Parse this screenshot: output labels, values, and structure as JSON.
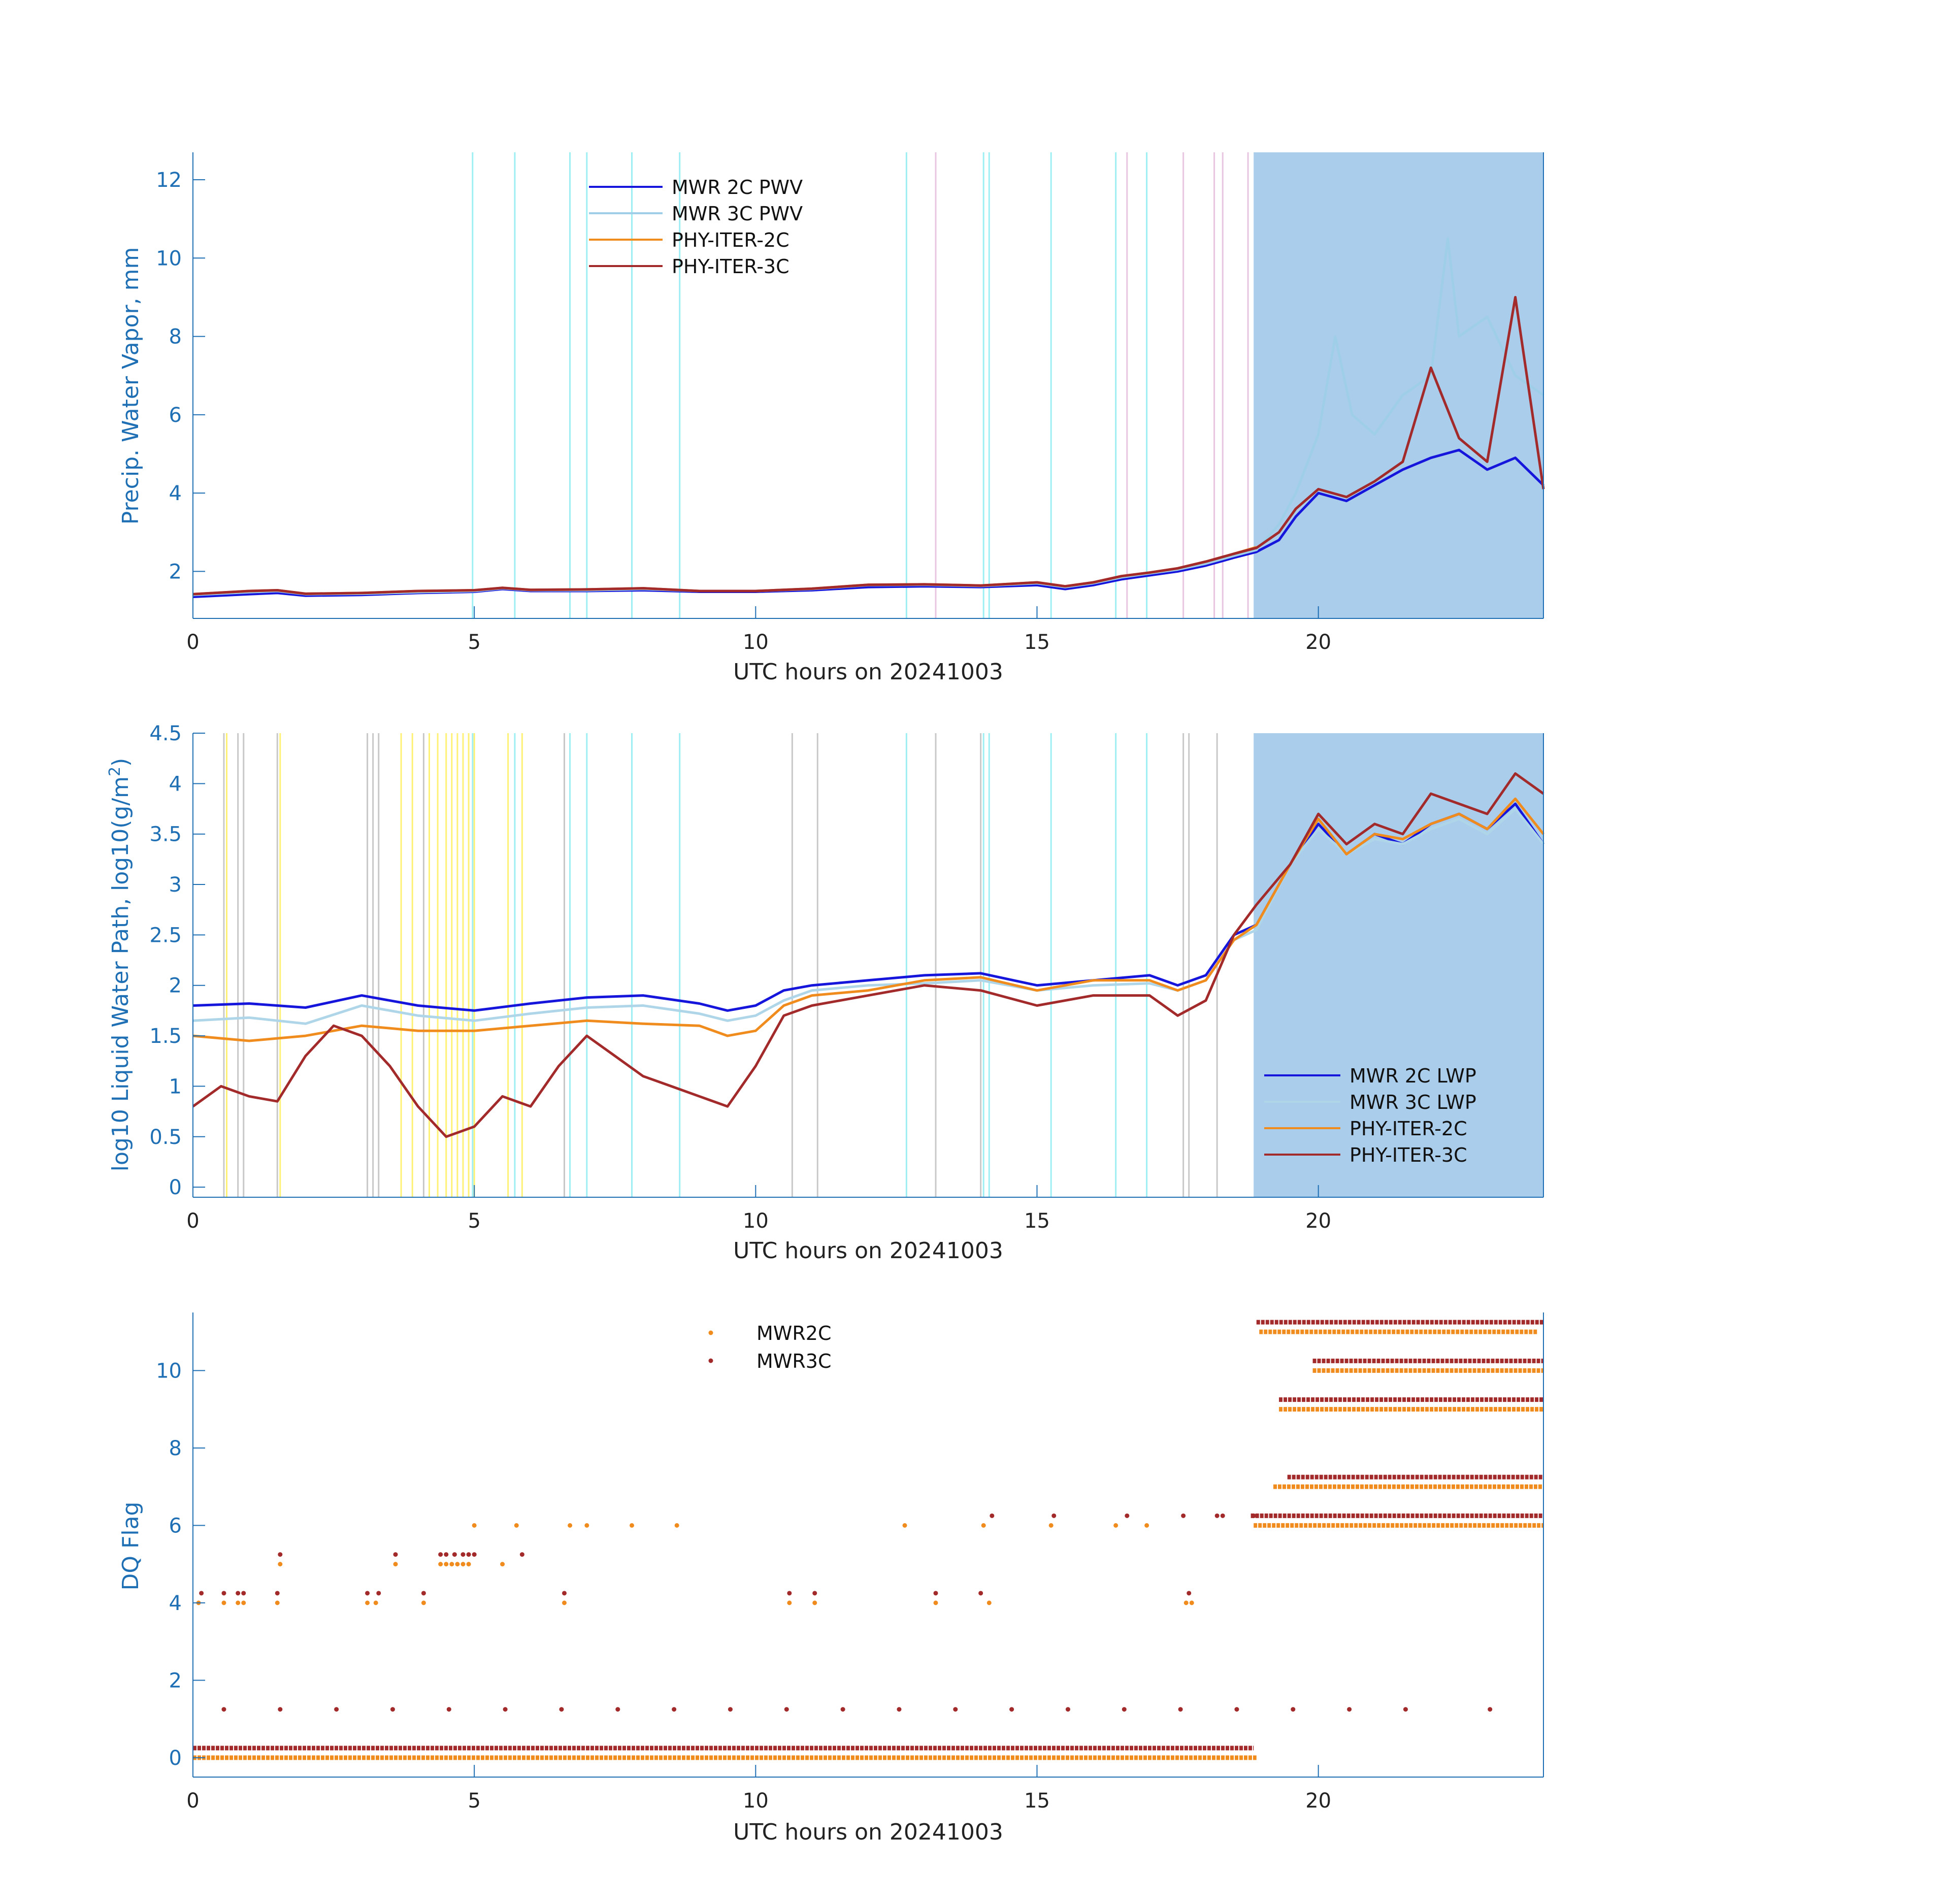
{
  "chart_data": [
    {
      "type": "line",
      "xlabel": "UTC hours on 20241003",
      "ylabel": "Precip. Water Vapor, mm",
      "xlim": [
        0,
        24
      ],
      "ylim": [
        0.8,
        12.7
      ],
      "xticks": [
        0,
        5,
        10,
        15,
        20
      ],
      "yticks": [
        2,
        4,
        6,
        8,
        10,
        12
      ],
      "legend_position": "top-center",
      "shaded_region": [
        18.85,
        24
      ],
      "shaded_color": "#aacdec",
      "flag_lines_cyan": [
        4.97,
        5.72,
        6.7,
        7.0,
        7.8,
        8.65,
        12.68,
        14.05,
        14.15,
        15.25,
        16.4,
        16.95
      ],
      "flag_lines_pink": [
        13.2,
        16.6,
        17.6,
        18.15,
        18.3,
        18.75
      ],
      "series": [
        {
          "name": "MWR 2C PWV",
          "color": "#1515dc",
          "x": [
            0,
            1,
            1.5,
            2,
            3,
            4,
            5,
            5.5,
            6,
            7,
            8,
            9,
            10,
            11,
            12,
            13,
            14,
            15,
            15.5,
            16,
            16.5,
            17,
            17.5,
            18,
            18.5,
            18.9,
            19.3,
            19.6,
            20,
            20.5,
            21,
            21.5,
            22,
            22.5,
            23,
            23.5,
            24
          ],
          "y": [
            1.35,
            1.42,
            1.45,
            1.38,
            1.4,
            1.45,
            1.48,
            1.55,
            1.5,
            1.5,
            1.52,
            1.48,
            1.48,
            1.52,
            1.6,
            1.62,
            1.6,
            1.65,
            1.55,
            1.65,
            1.8,
            1.9,
            2.0,
            2.15,
            2.35,
            2.5,
            2.8,
            3.4,
            4.0,
            3.8,
            4.2,
            4.6,
            4.9,
            5.1,
            4.6,
            4.9,
            4.2
          ]
        },
        {
          "name": "MWR 3C PWV",
          "color": "#9fcfe8",
          "x": [
            0,
            1,
            1.5,
            2,
            3,
            4,
            5,
            5.5,
            6,
            7,
            8,
            9,
            10,
            11,
            12,
            13,
            14,
            15,
            15.5,
            16,
            16.5,
            17,
            17.5,
            18,
            18.5,
            18.9,
            19.3,
            19.6,
            20,
            20.3,
            20.6,
            21,
            21.5,
            22,
            22.3,
            22.5,
            23,
            23.5,
            24
          ],
          "y": [
            1.4,
            1.47,
            1.5,
            1.42,
            1.43,
            1.47,
            1.5,
            1.57,
            1.52,
            1.52,
            1.55,
            1.5,
            1.5,
            1.55,
            1.65,
            1.66,
            1.63,
            1.7,
            1.6,
            1.7,
            1.85,
            1.95,
            2.05,
            2.2,
            2.4,
            2.55,
            3.2,
            4.0,
            5.5,
            8.0,
            6.0,
            5.5,
            6.5,
            7.0,
            10.5,
            8.0,
            8.5,
            7.0,
            6.5
          ]
        },
        {
          "name": "PHY-ITER-2C",
          "color": "#f08c1e",
          "x": [
            0,
            1,
            1.5,
            2,
            3,
            4,
            5,
            5.5,
            6,
            7,
            8,
            9,
            10,
            11,
            12,
            13,
            14,
            15,
            15.5,
            16,
            16.5,
            17,
            17.5,
            18,
            18.5,
            18.9
          ],
          "y": [
            1.42,
            1.5,
            1.52,
            1.43,
            1.45,
            1.5,
            1.52,
            1.58,
            1.53,
            1.54,
            1.57,
            1.5,
            1.5,
            1.56,
            1.66,
            1.67,
            1.64,
            1.72,
            1.62,
            1.72,
            1.88,
            1.97,
            2.08,
            2.25,
            2.45,
            2.62
          ]
        },
        {
          "name": "PHY-ITER-3C",
          "color": "#a32a2a",
          "x": [
            0,
            1,
            1.5,
            2,
            3,
            4,
            5,
            5.5,
            6,
            7,
            8,
            9,
            10,
            11,
            12,
            13,
            14,
            15,
            15.5,
            16,
            16.5,
            17,
            17.5,
            18,
            18.5,
            18.9,
            19.3,
            19.6,
            20,
            20.5,
            21,
            21.5,
            22,
            22.5,
            23,
            23.5,
            24
          ],
          "y": [
            1.42,
            1.5,
            1.52,
            1.43,
            1.45,
            1.5,
            1.52,
            1.58,
            1.53,
            1.54,
            1.57,
            1.5,
            1.5,
            1.56,
            1.66,
            1.67,
            1.64,
            1.72,
            1.62,
            1.72,
            1.88,
            1.97,
            2.08,
            2.25,
            2.45,
            2.6,
            3.0,
            3.6,
            4.1,
            3.9,
            4.3,
            4.8,
            7.2,
            5.4,
            4.8,
            9.0,
            4.1
          ]
        }
      ]
    },
    {
      "type": "line",
      "xlabel": "UTC hours on 20241003",
      "ylabel": "log10 Liquid Water Path, log10(g/m",
      "ylabel_sup": "2",
      "ylabel_end": ")",
      "xlim": [
        0,
        24
      ],
      "ylim": [
        -0.1,
        4.5
      ],
      "xticks": [
        0,
        5,
        10,
        15,
        20
      ],
      "yticks": [
        0,
        0.5,
        1,
        1.5,
        2,
        2.5,
        3,
        3.5,
        4,
        4.5
      ],
      "ytick_labels": [
        "0",
        "0.5",
        "1",
        "1.5",
        "2",
        "2.5",
        "3",
        "3.5",
        "4",
        "4.5"
      ],
      "legend_position": "bottom-right",
      "shaded_region": [
        18.85,
        24
      ],
      "shaded_color": "#aacdec",
      "flag_lines_cyan": [
        4.97,
        5.72,
        6.7,
        7.0,
        7.8,
        8.65,
        12.68,
        14.05,
        14.15,
        15.25,
        16.4,
        16.95
      ],
      "flag_lines_yellow": [
        0.6,
        1.55,
        3.7,
        3.9,
        4.2,
        4.35,
        4.5,
        4.6,
        4.7,
        4.8,
        4.9,
        5.0,
        5.6,
        5.85
      ],
      "flag_lines_gray": [
        0.55,
        0.8,
        0.9,
        1.5,
        3.1,
        3.2,
        3.3,
        4.1,
        6.6,
        10.65,
        11.1,
        13.2,
        14.0,
        17.6,
        17.7,
        18.2
      ],
      "series": [
        {
          "name": "MWR 2C LWP",
          "color": "#1515dc",
          "x": [
            0,
            1,
            2,
            3,
            4,
            5,
            6,
            7,
            8,
            9,
            9.5,
            10,
            10.5,
            11,
            12,
            13,
            14,
            15,
            16,
            17,
            17.5,
            18,
            18.5,
            18.9,
            19.5,
            20,
            20.5,
            21,
            21.5,
            22,
            22.5,
            23,
            23.5,
            24
          ],
          "y": [
            1.8,
            1.82,
            1.78,
            1.9,
            1.8,
            1.75,
            1.82,
            1.88,
            1.9,
            1.82,
            1.75,
            1.8,
            1.95,
            2.0,
            2.05,
            2.1,
            2.12,
            2.0,
            2.05,
            2.1,
            2.0,
            2.1,
            2.5,
            2.6,
            3.2,
            3.6,
            3.3,
            3.5,
            3.4,
            3.6,
            3.7,
            3.55,
            3.8,
            3.4
          ]
        },
        {
          "name": "MWR 3C LWP",
          "color": "#aed6e8",
          "x": [
            0,
            1,
            2,
            3,
            4,
            5,
            6,
            7,
            8,
            9,
            9.5,
            10,
            10.5,
            11,
            12,
            13,
            14,
            15,
            16,
            17,
            17.5,
            18,
            18.5,
            18.9,
            19.5,
            20,
            20.5,
            21,
            21.5,
            22,
            22.5,
            23,
            23.5,
            24
          ],
          "y": [
            1.65,
            1.68,
            1.62,
            1.8,
            1.7,
            1.65,
            1.72,
            1.78,
            1.8,
            1.72,
            1.65,
            1.7,
            1.85,
            1.95,
            2.0,
            2.02,
            2.05,
            1.95,
            2.0,
            2.02,
            1.95,
            2.05,
            2.45,
            2.55,
            3.2,
            3.55,
            3.3,
            3.45,
            3.4,
            3.55,
            3.65,
            3.5,
            3.75,
            3.4
          ]
        },
        {
          "name": "PHY-ITER-2C",
          "color": "#f08c1e",
          "x": [
            0,
            1,
            2,
            3,
            4,
            5,
            6,
            7,
            8,
            9,
            9.5,
            10,
            10.5,
            11,
            12,
            13,
            14,
            15,
            16,
            17,
            17.5,
            18,
            18.5,
            18.9,
            19.5,
            20,
            20.5,
            21,
            21.5,
            22,
            22.5,
            23,
            23.5,
            24
          ],
          "y": [
            1.5,
            1.45,
            1.5,
            1.6,
            1.55,
            1.55,
            1.6,
            1.65,
            1.62,
            1.6,
            1.5,
            1.55,
            1.8,
            1.9,
            1.95,
            2.05,
            2.08,
            1.95,
            2.05,
            2.05,
            1.95,
            2.05,
            2.45,
            2.6,
            3.2,
            3.65,
            3.3,
            3.5,
            3.45,
            3.6,
            3.7,
            3.55,
            3.85,
            3.5
          ]
        },
        {
          "name": "PHY-ITER-3C",
          "color": "#a32a2a",
          "x": [
            0,
            0.5,
            1,
            1.5,
            2,
            2.5,
            3,
            3.5,
            4,
            4.5,
            5,
            5.5,
            6,
            6.5,
            7,
            7.5,
            8,
            8.5,
            9,
            9.5,
            10,
            10.5,
            11,
            12,
            13,
            14,
            15,
            16,
            17,
            17.5,
            18,
            18.5,
            18.9,
            19.5,
            20,
            20.5,
            21,
            21.5,
            22,
            22.5,
            23,
            23.5,
            24
          ],
          "y": [
            0.8,
            1.0,
            0.9,
            0.85,
            1.3,
            1.6,
            1.5,
            1.2,
            0.8,
            0.5,
            0.6,
            0.9,
            0.8,
            1.2,
            1.5,
            1.3,
            1.1,
            1.0,
            0.9,
            0.8,
            1.2,
            1.7,
            1.8,
            1.9,
            2.0,
            1.95,
            1.8,
            1.9,
            1.9,
            1.7,
            1.85,
            2.5,
            2.8,
            3.2,
            3.7,
            3.4,
            3.6,
            3.5,
            3.9,
            3.8,
            3.7,
            4.1,
            3.9
          ]
        }
      ]
    },
    {
      "type": "scatter",
      "xlabel": "UTC hours on 20241003",
      "ylabel": "DQ Flag",
      "xlim": [
        0,
        24
      ],
      "ylim": [
        -0.5,
        11.5
      ],
      "xticks": [
        0,
        5,
        10,
        15,
        20
      ],
      "yticks": [
        0,
        2,
        4,
        6,
        8,
        10
      ],
      "legend_position": "top-center",
      "series": [
        {
          "name": "MWR2C",
          "color": "#f08c1e",
          "bands": [
            {
              "y": 0,
              "from": 0,
              "to": 18.9
            },
            {
              "y": 6,
              "from": 18.85,
              "to": 24
            },
            {
              "y": 7,
              "from": 19.2,
              "to": 24
            },
            {
              "y": 9,
              "from": 19.3,
              "to": 24
            },
            {
              "y": 10,
              "from": 19.9,
              "to": 24
            },
            {
              "y": 11,
              "from": 18.95,
              "to": 23.9
            }
          ],
          "points_x": [
            0.1,
            0.55,
            0.8,
            0.9,
            1.5,
            1.55,
            3.1,
            3.25,
            3.6,
            4.1,
            4.4,
            4.5,
            4.6,
            4.7,
            4.8,
            4.9,
            5.0,
            5.5,
            5.75,
            6.6,
            6.7,
            7.0,
            7.8,
            8.6,
            10.6,
            11.05,
            12.65,
            13.2,
            14.05,
            14.15,
            15.25,
            16.4,
            16.95,
            17.65,
            17.75
          ],
          "points_y": [
            4,
            4,
            4,
            4,
            4,
            5,
            4,
            4,
            5,
            4,
            5,
            5,
            5,
            5,
            5,
            5,
            6,
            5,
            6,
            4,
            6,
            6,
            6,
            6,
            4,
            4,
            6,
            4,
            6,
            4,
            6,
            6,
            6,
            4,
            4
          ]
        },
        {
          "name": "MWR3C",
          "color": "#a32a2a",
          "bands": [
            {
              "y": 0.25,
              "from": 0,
              "to": 18.85
            },
            {
              "y": 6.25,
              "from": 18.8,
              "to": 24
            },
            {
              "y": 7.25,
              "from": 19.45,
              "to": 24
            },
            {
              "y": 9.25,
              "from": 19.3,
              "to": 24
            },
            {
              "y": 10.25,
              "from": 19.9,
              "to": 24
            },
            {
              "y": 11.25,
              "from": 18.9,
              "to": 24
            }
          ],
          "points_x": [
            0.15,
            0.55,
            0.8,
            0.9,
            1.5,
            1.55,
            3.1,
            3.3,
            3.6,
            4.1,
            4.4,
            4.5,
            4.65,
            4.8,
            4.9,
            5.0,
            5.85,
            6.6,
            10.6,
            11.05,
            13.2,
            14.0,
            14.2,
            15.3,
            16.6,
            17.6,
            17.7,
            18.2,
            18.3,
            18.85
          ],
          "points_y": [
            4.25,
            4.25,
            4.25,
            4.25,
            4.25,
            5.25,
            4.25,
            4.25,
            5.25,
            4.25,
            5.25,
            5.25,
            5.25,
            5.25,
            5.25,
            5.25,
            5.25,
            4.25,
            4.25,
            4.25,
            4.25,
            4.25,
            6.25,
            6.25,
            6.25,
            6.25,
            4.25,
            6.25,
            6.25,
            6.25
          ],
          "sparse_y": 1.25,
          "sparse_x": [
            0.55,
            1.55,
            2.55,
            3.55,
            4.55,
            5.55,
            6.55,
            7.55,
            8.55,
            9.55,
            10.55,
            11.55,
            12.55,
            13.55,
            14.55,
            15.55,
            16.55,
            17.55,
            18.55,
            19.55,
            20.55,
            21.55,
            23.05
          ]
        }
      ]
    }
  ]
}
